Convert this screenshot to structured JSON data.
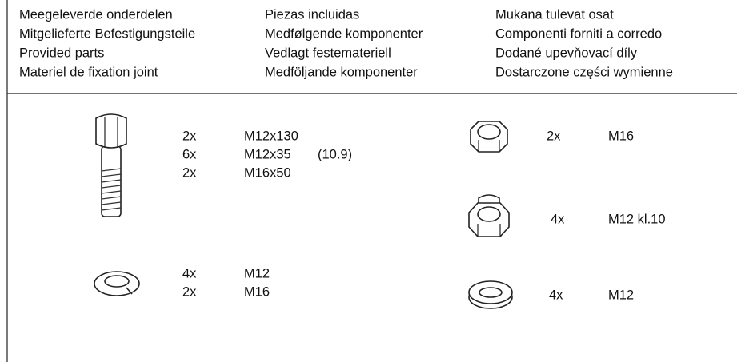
{
  "header": {
    "columns": [
      [
        "Meegeleverde onderdelen",
        "Mitgelieferte Befestigungsteile",
        "Provided parts",
        "Materiel de fixation joint"
      ],
      [
        "Piezas incluidas",
        "Medfølgende komponenter",
        "Vedlagt festemateriell",
        "Medföljande komponenter"
      ],
      [
        "Mukana tulevat osat",
        "Componenti forniti a corredo",
        "Dodané upevňovací díly",
        "Dostarczone części wymienne"
      ]
    ]
  },
  "parts": [
    {
      "items": [
        {
          "qty": "2x",
          "spec": "M12x130"
        },
        {
          "qty": "6x",
          "spec": "M12x35",
          "note": "(10.9)"
        },
        {
          "qty": "2x",
          "spec": "M16x50"
        }
      ]
    },
    {
      "items": [
        {
          "qty": "4x",
          "spec": "M12"
        },
        {
          "qty": "2x",
          "spec": "M16"
        }
      ]
    },
    {
      "items": [
        {
          "qty": "2x",
          "spec": "M16"
        }
      ]
    },
    {
      "items": [
        {
          "qty": "4x",
          "spec": "M12 kl.10"
        }
      ]
    },
    {
      "items": [
        {
          "qty": "4x",
          "spec": "M12"
        }
      ]
    }
  ]
}
